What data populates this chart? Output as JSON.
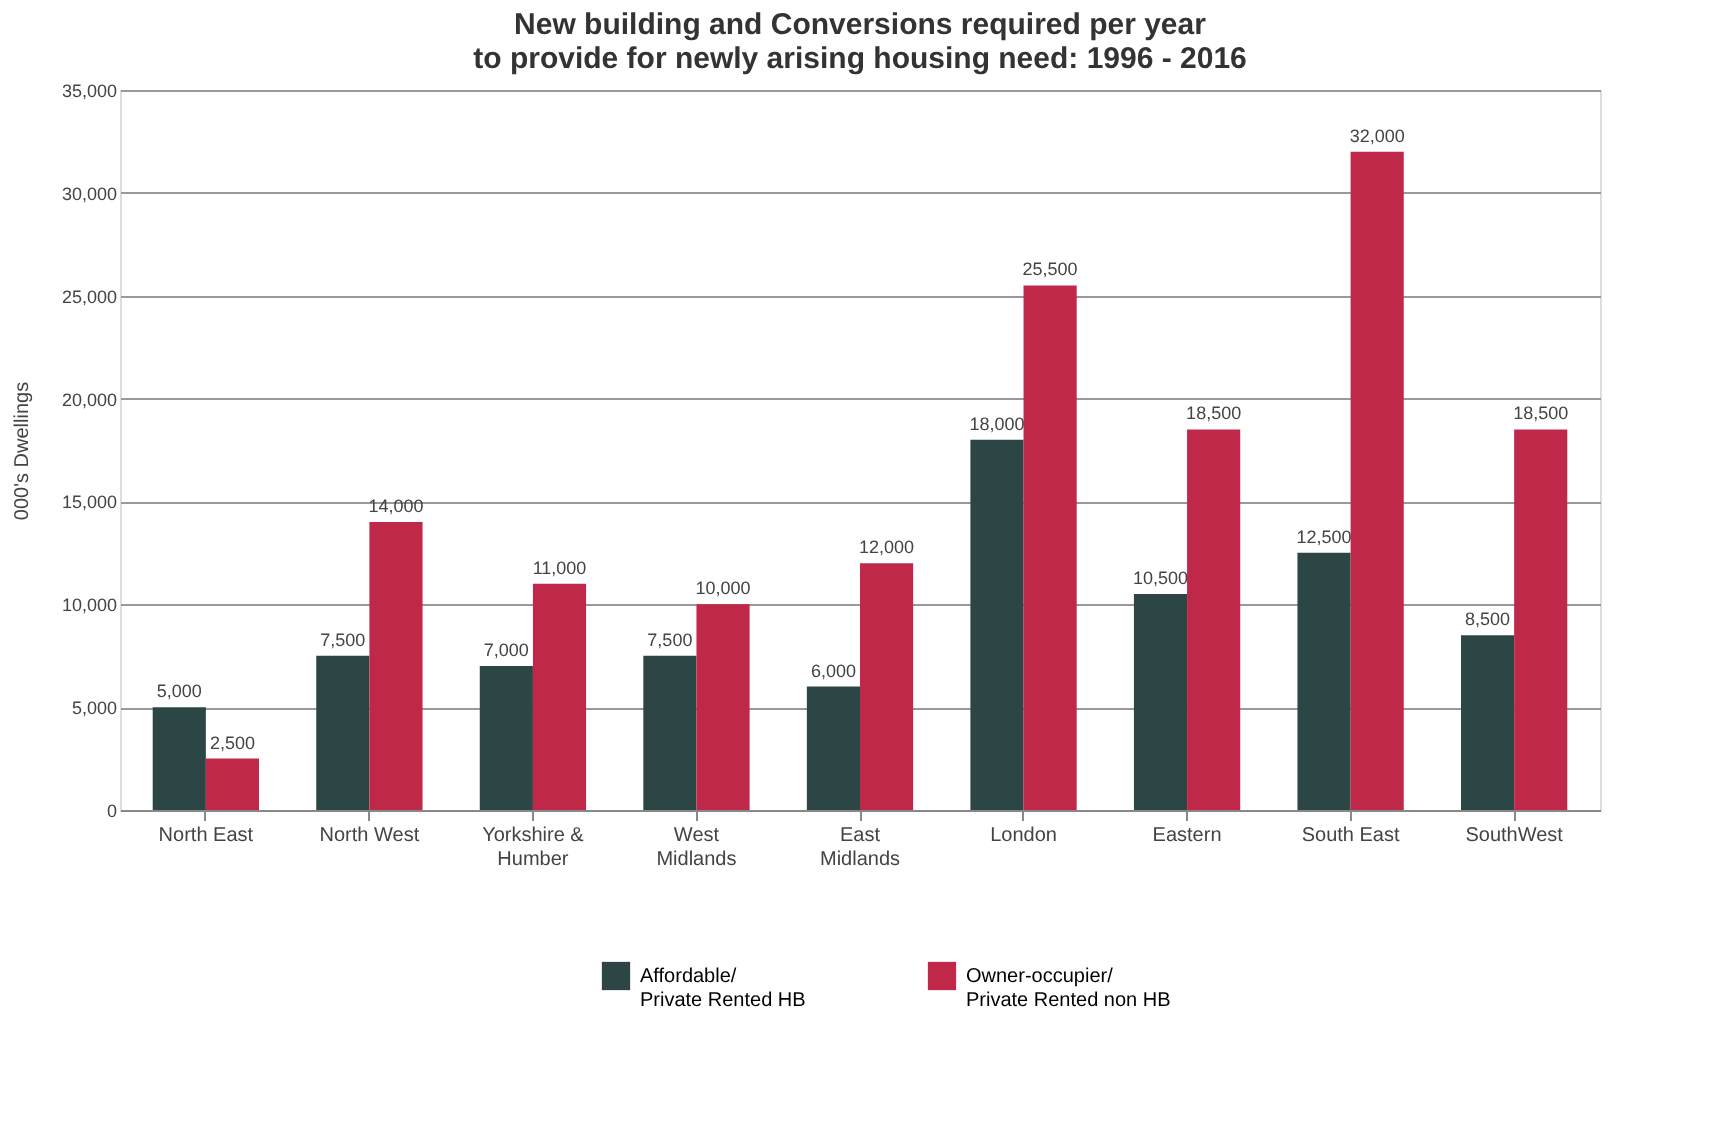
{
  "chart_data": {
    "type": "bar",
    "title": [
      "New building and Conversions required per year",
      "to provide for newly arising housing need: 1996 - 2016"
    ],
    "ylabel": "000's Dwellings",
    "categories": [
      "North East",
      "North West",
      "Yorkshire &\nHumber",
      "West\nMidlands",
      "East\nMidlands",
      "London",
      "Eastern",
      "South East",
      "SouthWest"
    ],
    "series": [
      {
        "name": "Affordable/\nPrivate Rented HB",
        "color": "#2b4645",
        "values": [
          5000,
          7500,
          7000,
          7500,
          6000,
          18000,
          10500,
          12500,
          8500
        ],
        "value_labels": [
          "5,000",
          "7,500",
          "7,000",
          "7,500",
          "6,000",
          "18,000",
          "10,500",
          "12,500",
          "8,500"
        ]
      },
      {
        "name": "Owner-occupier/\nPrivate Rented non HB",
        "color": "#c0284a",
        "values": [
          2500,
          14000,
          11000,
          10000,
          12000,
          25500,
          18500,
          32000,
          18500
        ],
        "value_labels": [
          "2,500",
          "14,000",
          "11,000",
          "10,000",
          "12,000",
          "25,500",
          "18,500",
          "32,000",
          "18,500"
        ]
      }
    ],
    "ylim": [
      0,
      35000
    ],
    "yticks": [
      {
        "value": 0,
        "label": "0"
      },
      {
        "value": 5000,
        "label": "5,000"
      },
      {
        "value": 10000,
        "label": "10,000"
      },
      {
        "value": 15000,
        "label": "15,000"
      },
      {
        "value": 20000,
        "label": "20,000"
      },
      {
        "value": 25000,
        "label": "25,000"
      },
      {
        "value": 30000,
        "label": "30,000"
      },
      {
        "value": 35000,
        "label": "35,000"
      }
    ],
    "grid": "y",
    "legend": "bottom"
  }
}
